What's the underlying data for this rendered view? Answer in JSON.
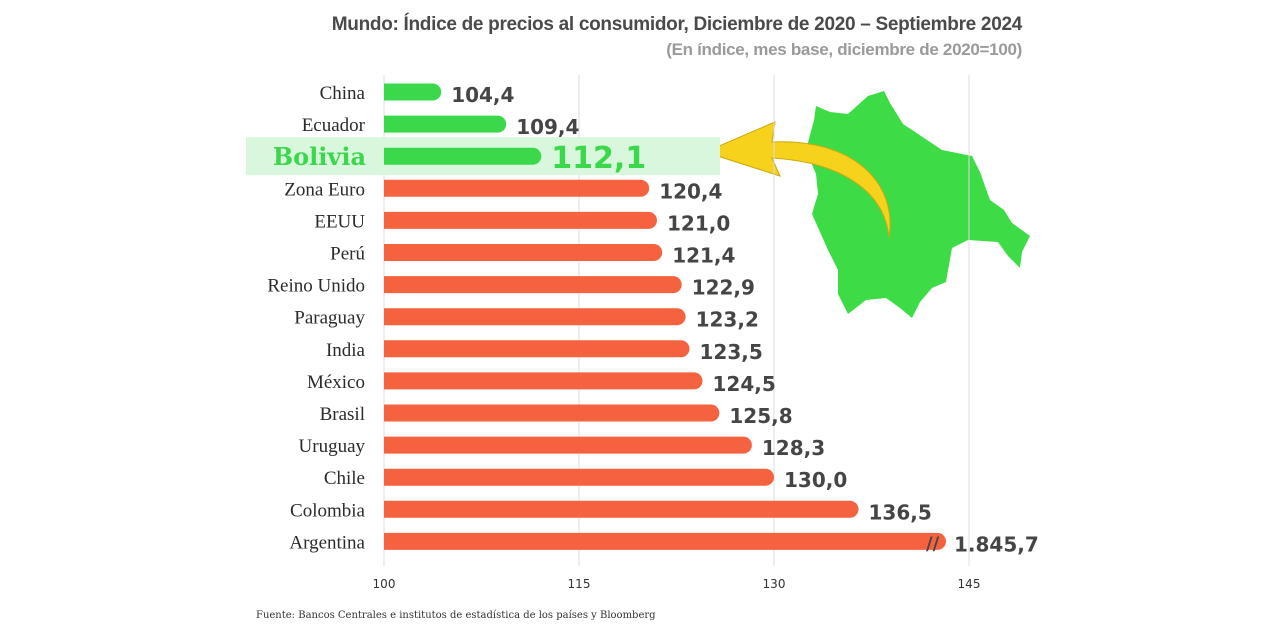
{
  "header": {
    "title": "Mundo: Índice de precios al consumidor, Diciembre de 2020 – Septiembre 2024",
    "subtitle": "(En índice, mes base, diciembre de 2020=100)"
  },
  "source": "Fuente: Bancos Centrales e institutos de estadística de los países y Bloomberg",
  "colors": {
    "highlight_green": "#3ad84a",
    "bar_red": "#f5623f",
    "highlight_band": "#d8f7dc",
    "grid": "#dcdcdc",
    "label_text": "#2b2b2b",
    "value_text": "#454545",
    "map_green": "#3ddc47",
    "arrow_yellow": "#f7d21c"
  },
  "chart_data": {
    "type": "bar",
    "orientation": "horizontal",
    "title": "Mundo: Índice de precios al consumidor, Diciembre de 2020 – Septiembre 2024",
    "subtitle": "(En índice, mes base, diciembre de 2020=100)",
    "categories": [
      "China",
      "Ecuador",
      "Bolivia",
      "Zona Euro",
      "EEUU",
      "Perú",
      "Reino Unido",
      "Paraguay",
      "India",
      "México",
      "Brasil",
      "Uruguay",
      "Chile",
      "Colombia",
      "Argentina"
    ],
    "values": [
      104.4,
      109.4,
      112.1,
      120.4,
      121.0,
      121.4,
      122.9,
      123.2,
      123.5,
      124.5,
      125.8,
      128.3,
      130.0,
      136.5,
      1845.7
    ],
    "value_labels": [
      "104,4",
      "109,4",
      "112,1",
      "120,4",
      "121,0",
      "121,4",
      "122,9",
      "123,2",
      "123,5",
      "124,5",
      "125,8",
      "128,3",
      "130,0",
      "136,5",
      "1.845,7"
    ],
    "highlight": "Bolivia",
    "green_categories": [
      "China",
      "Ecuador",
      "Bolivia"
    ],
    "axis_break": {
      "category": "Argentina",
      "marker": "//"
    },
    "xlim": [
      100,
      150
    ],
    "xticks": [
      100,
      115,
      130,
      145
    ],
    "xtick_labels": [
      "100",
      "115",
      "130",
      "145"
    ],
    "grid": true,
    "xlabel": "",
    "ylabel": ""
  }
}
